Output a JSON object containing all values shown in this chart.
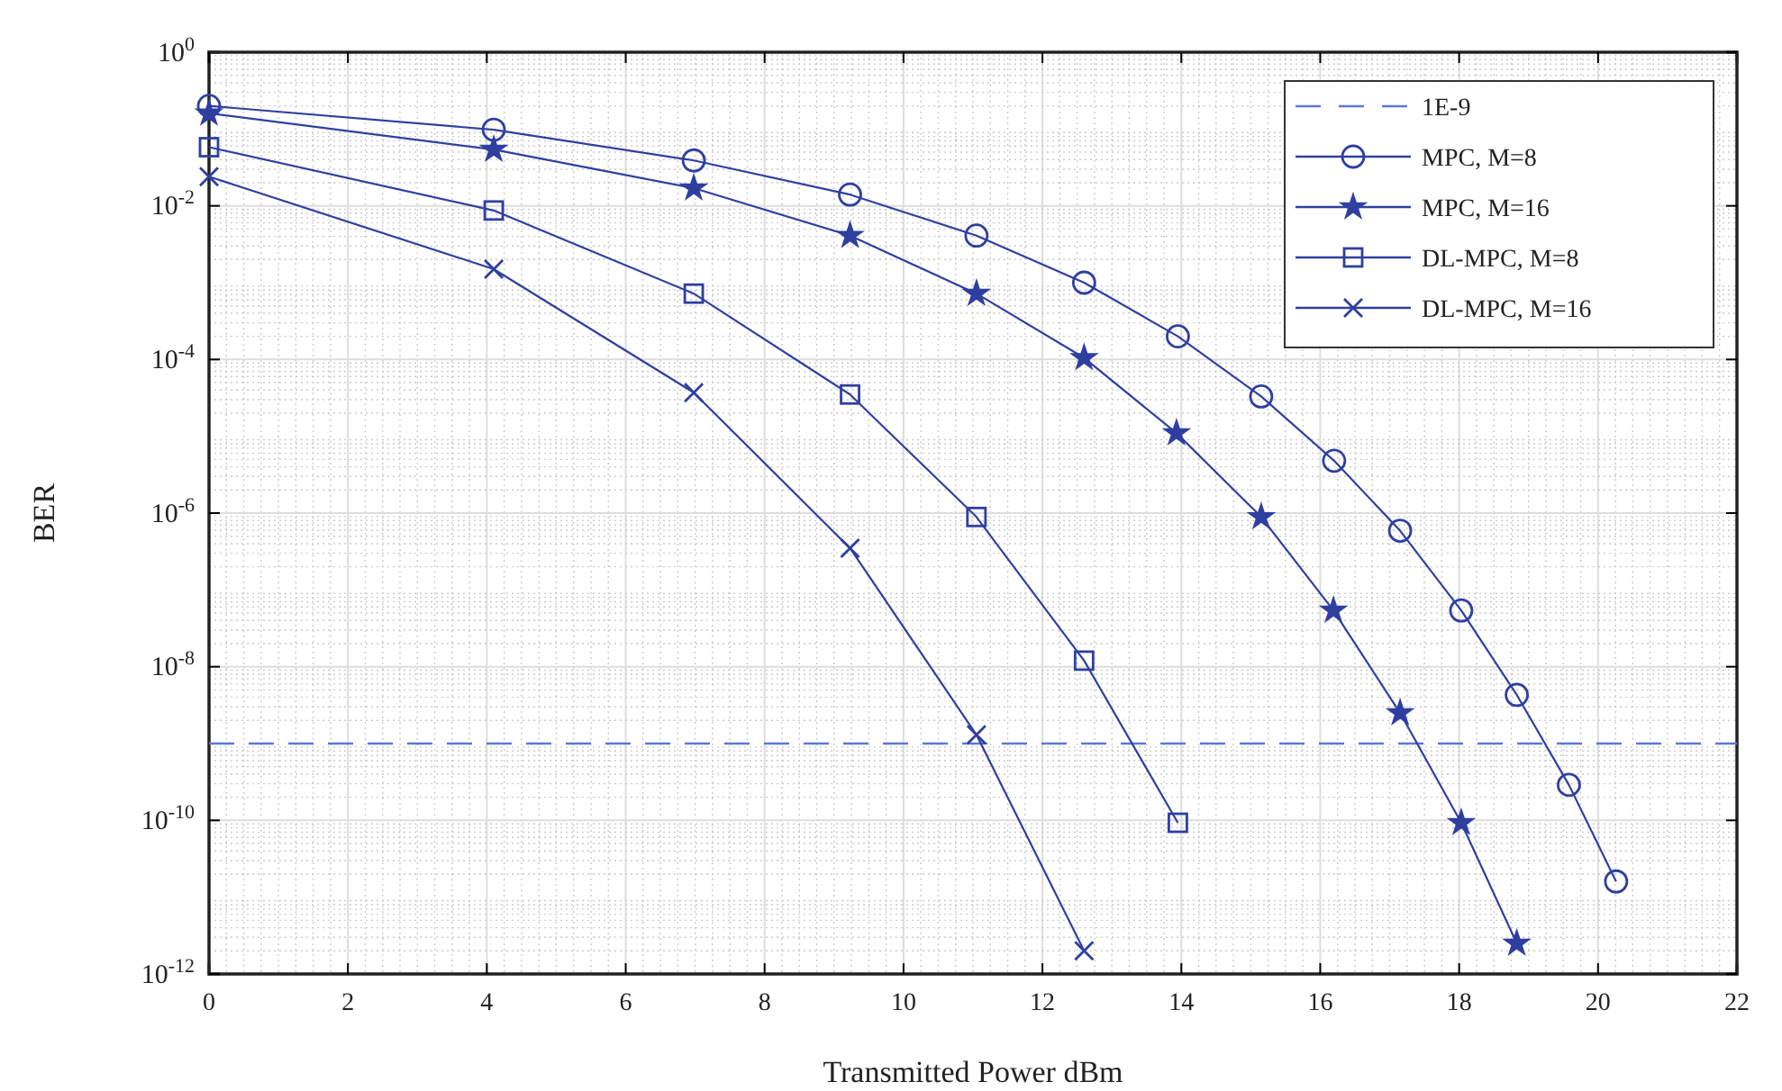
{
  "chart_data": {
    "type": "line",
    "xlabel": "Transmitted Power dBm",
    "ylabel": "BER",
    "log": "y",
    "grid": true,
    "legend": "top right",
    "line_style": "solid",
    "xlim": [
      0,
      22
    ],
    "xticks": [
      0,
      2,
      4,
      6,
      8,
      10,
      12,
      14,
      16,
      18,
      20,
      22
    ],
    "ylim": [
      1e-12,
      1
    ],
    "yticks": [
      {
        "value": 1,
        "label": "10$^{0}$"
      },
      {
        "value": 0.01,
        "label": "10$^{-2}$"
      },
      {
        "value": 0.0001,
        "label": "10$^{-4}$"
      },
      {
        "value": 1e-06,
        "label": "10$^{-6}$"
      },
      {
        "value": 1e-08,
        "label": "10$^{-8}$"
      },
      {
        "value": 1e-10,
        "label": "10$^{-10}$"
      },
      {
        "value": 1e-12,
        "label": "10$^{-12}$"
      }
    ],
    "ref_lines": [
      {
        "axis": "y",
        "value": 1e-09,
        "label": "1E-9",
        "color": "#5b78d2",
        "line_style": "dashed"
      }
    ],
    "series": [
      {
        "name": "MPC, M=8",
        "color": "#2f3fa0",
        "marker": "circle",
        "x": [
          0,
          4.1,
          6.98,
          9.23,
          11.05,
          12.6,
          13.95,
          15.15,
          16.2,
          17.15,
          18.03,
          18.83,
          19.58,
          20.26
        ],
        "values": [
          0.2,
          0.098,
          0.039,
          0.014,
          0.0041,
          0.001,
          0.0002,
          3.3e-05,
          4.8e-06,
          5.9e-07,
          5.4e-08,
          4.3e-09,
          2.9e-10,
          1.6e-11
        ]
      },
      {
        "name": "MPC, M=16",
        "color": "#2f3fa0",
        "marker": "star",
        "x": [
          0,
          4.1,
          6.98,
          9.23,
          11.05,
          12.6,
          13.93,
          15.15,
          16.19,
          17.15,
          18.03,
          18.83
        ],
        "values": [
          0.16,
          0.054,
          0.017,
          0.0041,
          0.00072,
          0.000105,
          1.1e-05,
          8.9e-07,
          5.4e-08,
          2.5e-09,
          9.3e-11,
          2.5e-12
        ]
      },
      {
        "name": "DL-MPC, M=8",
        "color": "#2f3fa0",
        "marker": "square",
        "x": [
          0,
          4.1,
          6.98,
          9.23,
          11.05,
          12.6,
          13.95
        ],
        "values": [
          0.058,
          0.0087,
          0.00072,
          3.5e-05,
          8.9e-07,
          1.2e-08,
          9.3e-11
        ]
      },
      {
        "name": "DL-MPC, M=16",
        "color": "#2f3fa0",
        "marker": "cross",
        "x": [
          0,
          4.1,
          6.98,
          9.23,
          11.05,
          12.6
        ],
        "values": [
          0.024,
          0.0015,
          3.7e-05,
          3.5e-07,
          1.3e-09,
          2e-12
        ]
      }
    ]
  }
}
